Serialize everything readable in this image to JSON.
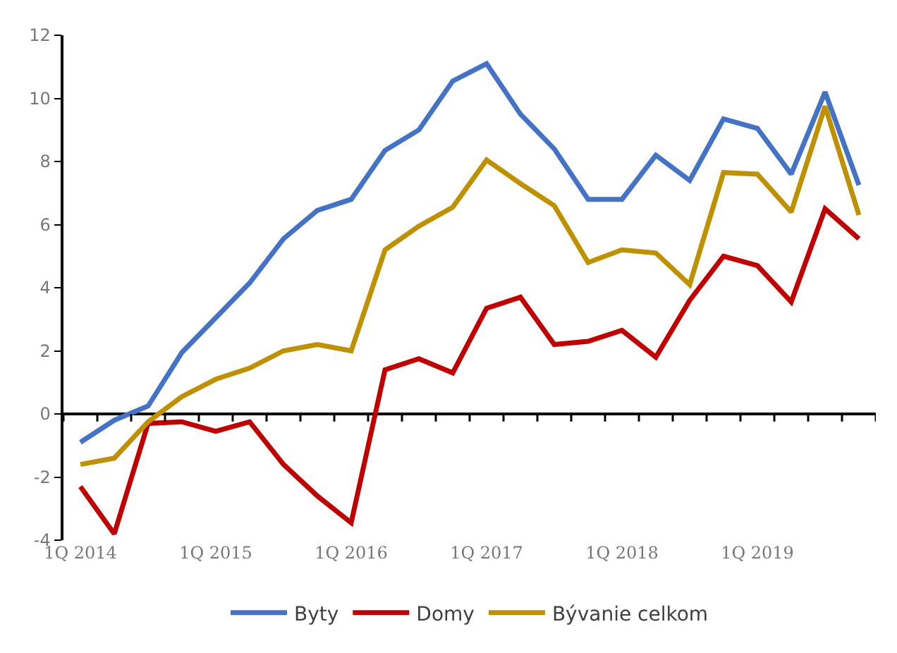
{
  "chart_data": {
    "type": "line",
    "categories": [
      "1Q 2014",
      null,
      null,
      null,
      "1Q 2015",
      null,
      null,
      null,
      "1Q 2016",
      null,
      null,
      null,
      "1Q 2017",
      null,
      null,
      null,
      "1Q 2018",
      null,
      null,
      null,
      "1Q 2019",
      null,
      null,
      null
    ],
    "series": [
      {
        "name": "Byty",
        "color": "#4472c4",
        "values": [
          -0.9,
          -0.2,
          0.25,
          1.95,
          3.05,
          4.15,
          5.55,
          6.45,
          6.8,
          8.35,
          9.0,
          10.55,
          11.1,
          9.5,
          8.4,
          6.8,
          6.8,
          8.2,
          7.4,
          9.35,
          9.05,
          7.6,
          10.2,
          7.25
        ]
      },
      {
        "name": "Domy",
        "color": "#c00000",
        "values": [
          -2.3,
          -3.8,
          -0.3,
          -0.25,
          -0.55,
          -0.25,
          -1.6,
          -2.6,
          -3.45,
          1.4,
          1.75,
          1.3,
          3.35,
          3.7,
          2.2,
          2.3,
          2.65,
          1.8,
          3.6,
          5.0,
          4.7,
          3.55,
          6.5,
          5.55
        ]
      },
      {
        "name": "Bývanie celkom",
        "color": "#bf9000",
        "values": [
          -1.6,
          -1.4,
          -0.25,
          0.55,
          1.1,
          1.45,
          2.0,
          2.2,
          2.0,
          5.2,
          5.95,
          6.55,
          8.05,
          7.3,
          6.6,
          4.8,
          5.2,
          5.1,
          4.1,
          7.65,
          7.6,
          6.4,
          9.75,
          6.3
        ]
      }
    ],
    "ylim": [
      -4,
      12
    ],
    "yticks": [
      -4,
      -2,
      0,
      2,
      4,
      6,
      8,
      10,
      12
    ],
    "legend": "bottom",
    "marker": "none",
    "line_style": "solid"
  }
}
